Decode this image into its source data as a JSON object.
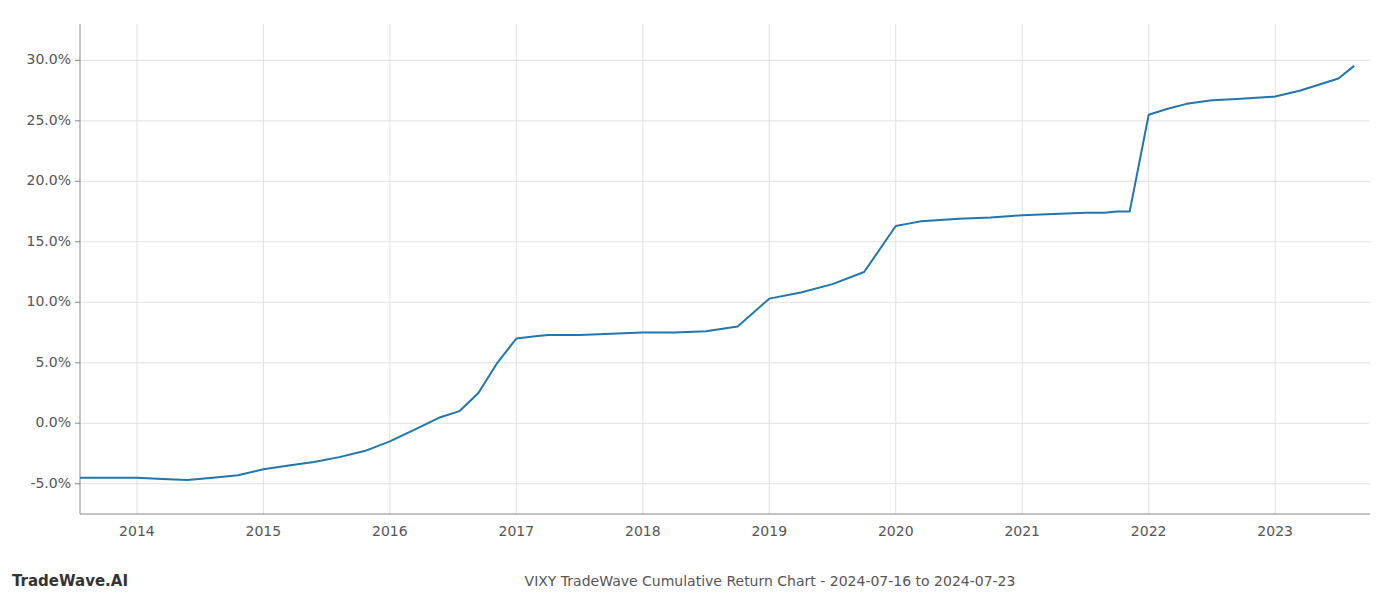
{
  "chart_data": {
    "type": "line",
    "title": "VIXY TradeWave Cumulative Return Chart - 2024-07-16 to 2024-07-23",
    "annotations": [
      "TradeWave.AI"
    ],
    "color": "#2176ae",
    "grid": true,
    "x": [
      2013.55,
      2014.0,
      2014.2,
      2014.4,
      2014.6,
      2014.8,
      2015.0,
      2015.2,
      2015.4,
      2015.6,
      2015.8,
      2016.0,
      2016.2,
      2016.4,
      2016.55,
      2016.7,
      2016.85,
      2017.0,
      2017.15,
      2017.25,
      2017.5,
      2017.75,
      2018.0,
      2018.25,
      2018.5,
      2018.75,
      2019.0,
      2019.25,
      2019.5,
      2019.75,
      2020.0,
      2020.1,
      2020.2,
      2020.35,
      2020.5,
      2020.75,
      2021.0,
      2021.25,
      2021.5,
      2021.65,
      2021.75,
      2021.85,
      2022.0,
      2022.15,
      2022.3,
      2022.5,
      2022.7,
      2022.85,
      2023.0,
      2023.2,
      2023.5,
      2023.62
    ],
    "values": [
      -4.5,
      -4.5,
      -4.6,
      -4.7,
      -4.5,
      -4.3,
      -3.8,
      -3.5,
      -3.2,
      -2.8,
      -2.3,
      -1.5,
      -0.5,
      0.5,
      1.0,
      2.5,
      5.0,
      7.0,
      7.2,
      7.3,
      7.3,
      7.4,
      7.5,
      7.5,
      7.6,
      8.0,
      10.3,
      10.8,
      11.5,
      12.5,
      16.3,
      16.5,
      16.7,
      16.8,
      16.9,
      17.0,
      17.2,
      17.3,
      17.4,
      17.4,
      17.5,
      17.5,
      25.5,
      26.0,
      26.4,
      26.7,
      26.8,
      26.9,
      27.0,
      27.5,
      28.5,
      29.5
    ],
    "xlim": [
      2013.55,
      2023.75
    ],
    "ylim": [
      -7.5,
      33
    ],
    "xticks": [
      2014,
      2015,
      2016,
      2017,
      2018,
      2019,
      2020,
      2021,
      2022,
      2023
    ],
    "yticks": [
      {
        "value": -5,
        "label": "-5.0%"
      },
      {
        "value": 0,
        "label": "0.0%"
      },
      {
        "value": 5,
        "label": "5.0%"
      },
      {
        "value": 10,
        "label": "10.0%"
      },
      {
        "value": 15,
        "label": "15.0%"
      },
      {
        "value": 20,
        "label": "20.0%"
      },
      {
        "value": 25,
        "label": "25.0%"
      },
      {
        "value": 30,
        "label": "30.0%"
      }
    ]
  }
}
